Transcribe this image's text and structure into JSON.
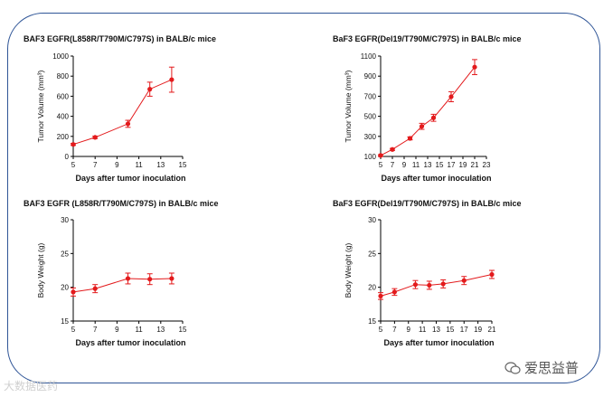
{
  "figure": {
    "watermark_left": "大数据医药",
    "watermark_right": "爱思益普"
  },
  "chart_data": [
    {
      "type": "line",
      "title": "BAF3 EGFR(L858R/T790M/C797S) in BALB/c mice",
      "xlabel": "Days after tumor inoculation",
      "ylabel": "Tumor Volume (mm³)",
      "xlim": [
        5,
        15
      ],
      "xticks": [
        5,
        7,
        9,
        11,
        13,
        15
      ],
      "ylim": [
        0,
        1000
      ],
      "yticks": [
        0,
        200,
        400,
        600,
        800,
        1000
      ],
      "color": "#e31a1c",
      "series": [
        {
          "name": "Tumor Volume",
          "x": [
            5,
            7,
            10,
            12,
            14
          ],
          "y": [
            120,
            190,
            325,
            670,
            765
          ],
          "err": [
            10,
            12,
            35,
            70,
            125
          ]
        }
      ]
    },
    {
      "type": "line",
      "title": "BaF3 EGFR(Del19/T790M/C797S) in BALB/c mice",
      "xlabel": "Days after tumor inoculation",
      "ylabel": "Tumor Volume (mm³)",
      "xlim": [
        5,
        23
      ],
      "xticks": [
        5,
        7,
        9,
        11,
        13,
        15,
        17,
        19,
        21,
        23
      ],
      "ylim": [
        100,
        1100
      ],
      "yticks": [
        100,
        300,
        500,
        700,
        900,
        1100
      ],
      "color": "#e31a1c",
      "series": [
        {
          "name": "Tumor Volume",
          "x": [
            5,
            7,
            10,
            12,
            14,
            17,
            21
          ],
          "y": [
            110,
            170,
            280,
            400,
            485,
            695,
            990
          ],
          "err": [
            8,
            10,
            15,
            30,
            35,
            50,
            75
          ]
        }
      ]
    },
    {
      "type": "line",
      "title": "BAF3 EGFR (L858R/T790M/C797S) in BALB/c mice",
      "xlabel": "Days after tumor inoculation",
      "ylabel": "Body Weight (g)",
      "xlim": [
        5,
        15
      ],
      "xticks": [
        5,
        7,
        9,
        11,
        13,
        15
      ],
      "ylim": [
        15,
        30
      ],
      "yticks": [
        15,
        20,
        25,
        30
      ],
      "color": "#e31a1c",
      "series": [
        {
          "name": "Body Weight",
          "x": [
            5,
            7,
            10,
            12,
            14
          ],
          "y": [
            19.3,
            19.8,
            21.3,
            21.2,
            21.3
          ],
          "err": [
            0.6,
            0.6,
            0.8,
            0.8,
            0.8
          ]
        }
      ]
    },
    {
      "type": "line",
      "title": "BaF3 EGFR(Del19/T790M/C797S) in BALB/c mice",
      "xlabel": "Days after tumor inoculation",
      "ylabel": "Body Weight (g)",
      "xlim": [
        5,
        21
      ],
      "xticks": [
        5,
        7,
        9,
        11,
        13,
        15,
        17,
        19,
        21
      ],
      "ylim": [
        15,
        30
      ],
      "yticks": [
        15,
        20,
        25,
        30
      ],
      "color": "#e31a1c",
      "series": [
        {
          "name": "Body Weight",
          "x": [
            5,
            7,
            10,
            12,
            14,
            17,
            21
          ],
          "y": [
            18.7,
            19.3,
            20.4,
            20.3,
            20.5,
            21.0,
            21.9
          ],
          "err": [
            0.5,
            0.5,
            0.6,
            0.6,
            0.6,
            0.6,
            0.6
          ]
        }
      ]
    }
  ]
}
